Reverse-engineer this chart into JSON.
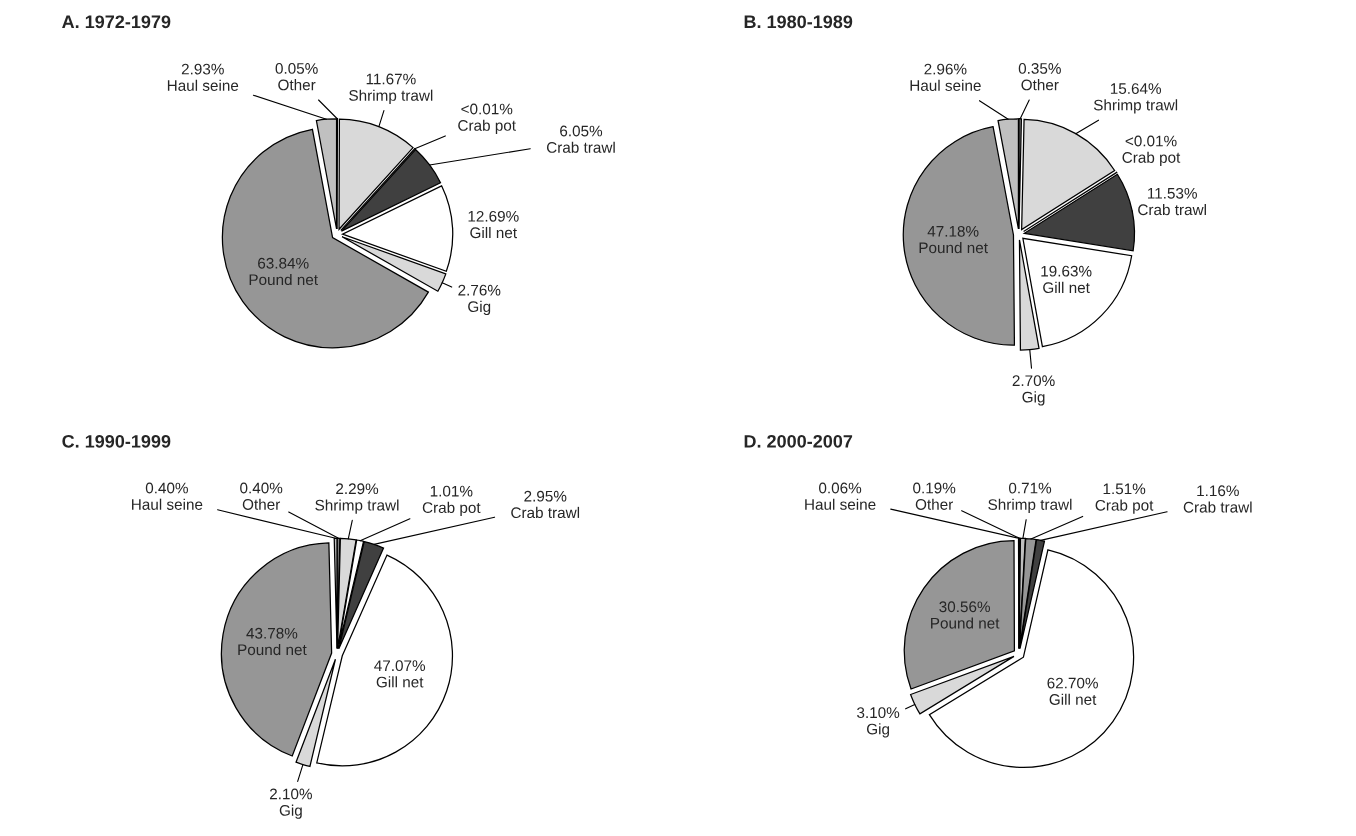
{
  "chart_data": [
    {
      "type": "pie",
      "title": "A. 1972-1979",
      "categories": [
        "Other",
        "Shrimp trawl",
        "Crab pot",
        "Crab trawl",
        "Gill net",
        "Gig",
        "Pound net",
        "Haul seine"
      ],
      "values": [
        0.05,
        11.67,
        0.01,
        6.05,
        12.69,
        2.76,
        63.84,
        2.93
      ],
      "value_labels": [
        "0.05%",
        "11.67%",
        "<0.01%",
        "6.05%",
        "12.69%",
        "2.76%",
        "63.84%",
        "2.93%"
      ],
      "colors": [
        "#808080",
        "#d9d9d9",
        "#ffffff",
        "#404040",
        "#ffffff",
        "#d9d9d9",
        "#969696",
        "#c0c0c0"
      ]
    },
    {
      "type": "pie",
      "title": "B. 1980-1989",
      "categories": [
        "Other",
        "Shrimp trawl",
        "Crab pot",
        "Crab trawl",
        "Gill net",
        "Gig",
        "Pound net",
        "Haul seine"
      ],
      "values": [
        0.35,
        15.64,
        0.01,
        11.53,
        19.63,
        2.7,
        47.18,
        2.96
      ],
      "value_labels": [
        "0.35%",
        "15.64%",
        "<0.01%",
        "11.53%",
        "19.63%",
        "2.70%",
        "47.18%",
        "2.96%"
      ],
      "colors": [
        "#808080",
        "#d9d9d9",
        "#ffffff",
        "#404040",
        "#ffffff",
        "#d9d9d9",
        "#969696",
        "#c0c0c0"
      ]
    },
    {
      "type": "pie",
      "title": "C. 1990-1999",
      "categories": [
        "Other",
        "Shrimp trawl",
        "Crab pot",
        "Crab trawl",
        "Gill net",
        "Gig",
        "Pound net",
        "Haul seine"
      ],
      "values": [
        0.4,
        2.29,
        1.01,
        2.95,
        47.07,
        2.1,
        43.78,
        0.4
      ],
      "value_labels": [
        "0.40%",
        "2.29%",
        "1.01%",
        "2.95%",
        "47.07%",
        "2.10%",
        "43.78%",
        "0.40%"
      ],
      "colors": [
        "#808080",
        "#d9d9d9",
        "#ffffff",
        "#404040",
        "#ffffff",
        "#d9d9d9",
        "#969696",
        "#c0c0c0"
      ]
    },
    {
      "type": "pie",
      "title": "D. 2000-2007",
      "categories": [
        "Other",
        "Shrimp trawl",
        "Crab pot",
        "Crab trawl",
        "Gill net",
        "Gig",
        "Pound net",
        "Haul seine"
      ],
      "values": [
        0.19,
        0.71,
        1.51,
        1.16,
        62.7,
        3.1,
        30.56,
        0.06
      ],
      "value_labels": [
        "0.19%",
        "0.71%",
        "1.51%",
        "1.16%",
        "62.70%",
        "3.10%",
        "30.56%",
        "0.06%"
      ],
      "colors": [
        "#d9d9d9",
        "#c0c0c0",
        "#969696",
        "#404040",
        "#ffffff",
        "#d9d9d9",
        "#969696",
        "#000000"
      ]
    }
  ]
}
